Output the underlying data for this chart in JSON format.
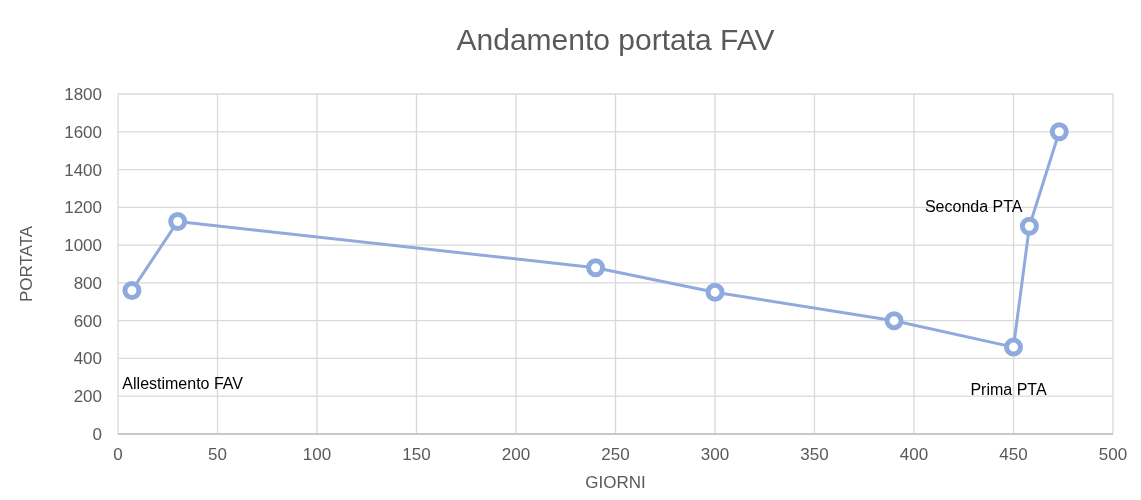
{
  "chart_data": {
    "type": "scatter",
    "title": "Andamento portata FAV",
    "xlabel": "GIORNI",
    "ylabel": "PORTATA",
    "x": [
      7,
      30,
      240,
      300,
      390,
      450,
      458,
      473
    ],
    "series": [
      {
        "type": "line",
        "color": "#8faadc",
        "values": [
          760,
          1125,
          880,
          750,
          600,
          460,
          1100,
          1600
        ]
      }
    ],
    "xlim": [
      0,
      500
    ],
    "xticks": [
      0,
      50,
      100,
      150,
      200,
      250,
      300,
      350,
      400,
      450,
      500
    ],
    "ylim": [
      0,
      1800
    ],
    "yticks": [
      0,
      200,
      400,
      600,
      800,
      1000,
      1200,
      1400,
      1600,
      1800
    ],
    "grid": true,
    "marker": "circle",
    "line_style": "solid",
    "annotations": [
      "Allestimento FAV",
      "Seconda PTA",
      "Prima PTA"
    ]
  }
}
